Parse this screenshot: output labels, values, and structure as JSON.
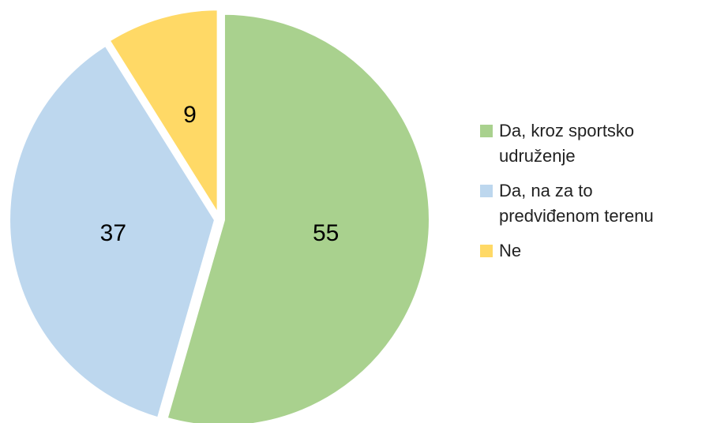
{
  "chart_data": {
    "type": "pie",
    "categories": [
      "Da, kroz sportsko udruženje",
      "Da, na za to predviđenom terenu",
      "Ne"
    ],
    "values": [
      55,
      37,
      9
    ],
    "colors": [
      "#a9d18e",
      "#bdd7ee",
      "#ffd966"
    ],
    "legend": "right"
  }
}
